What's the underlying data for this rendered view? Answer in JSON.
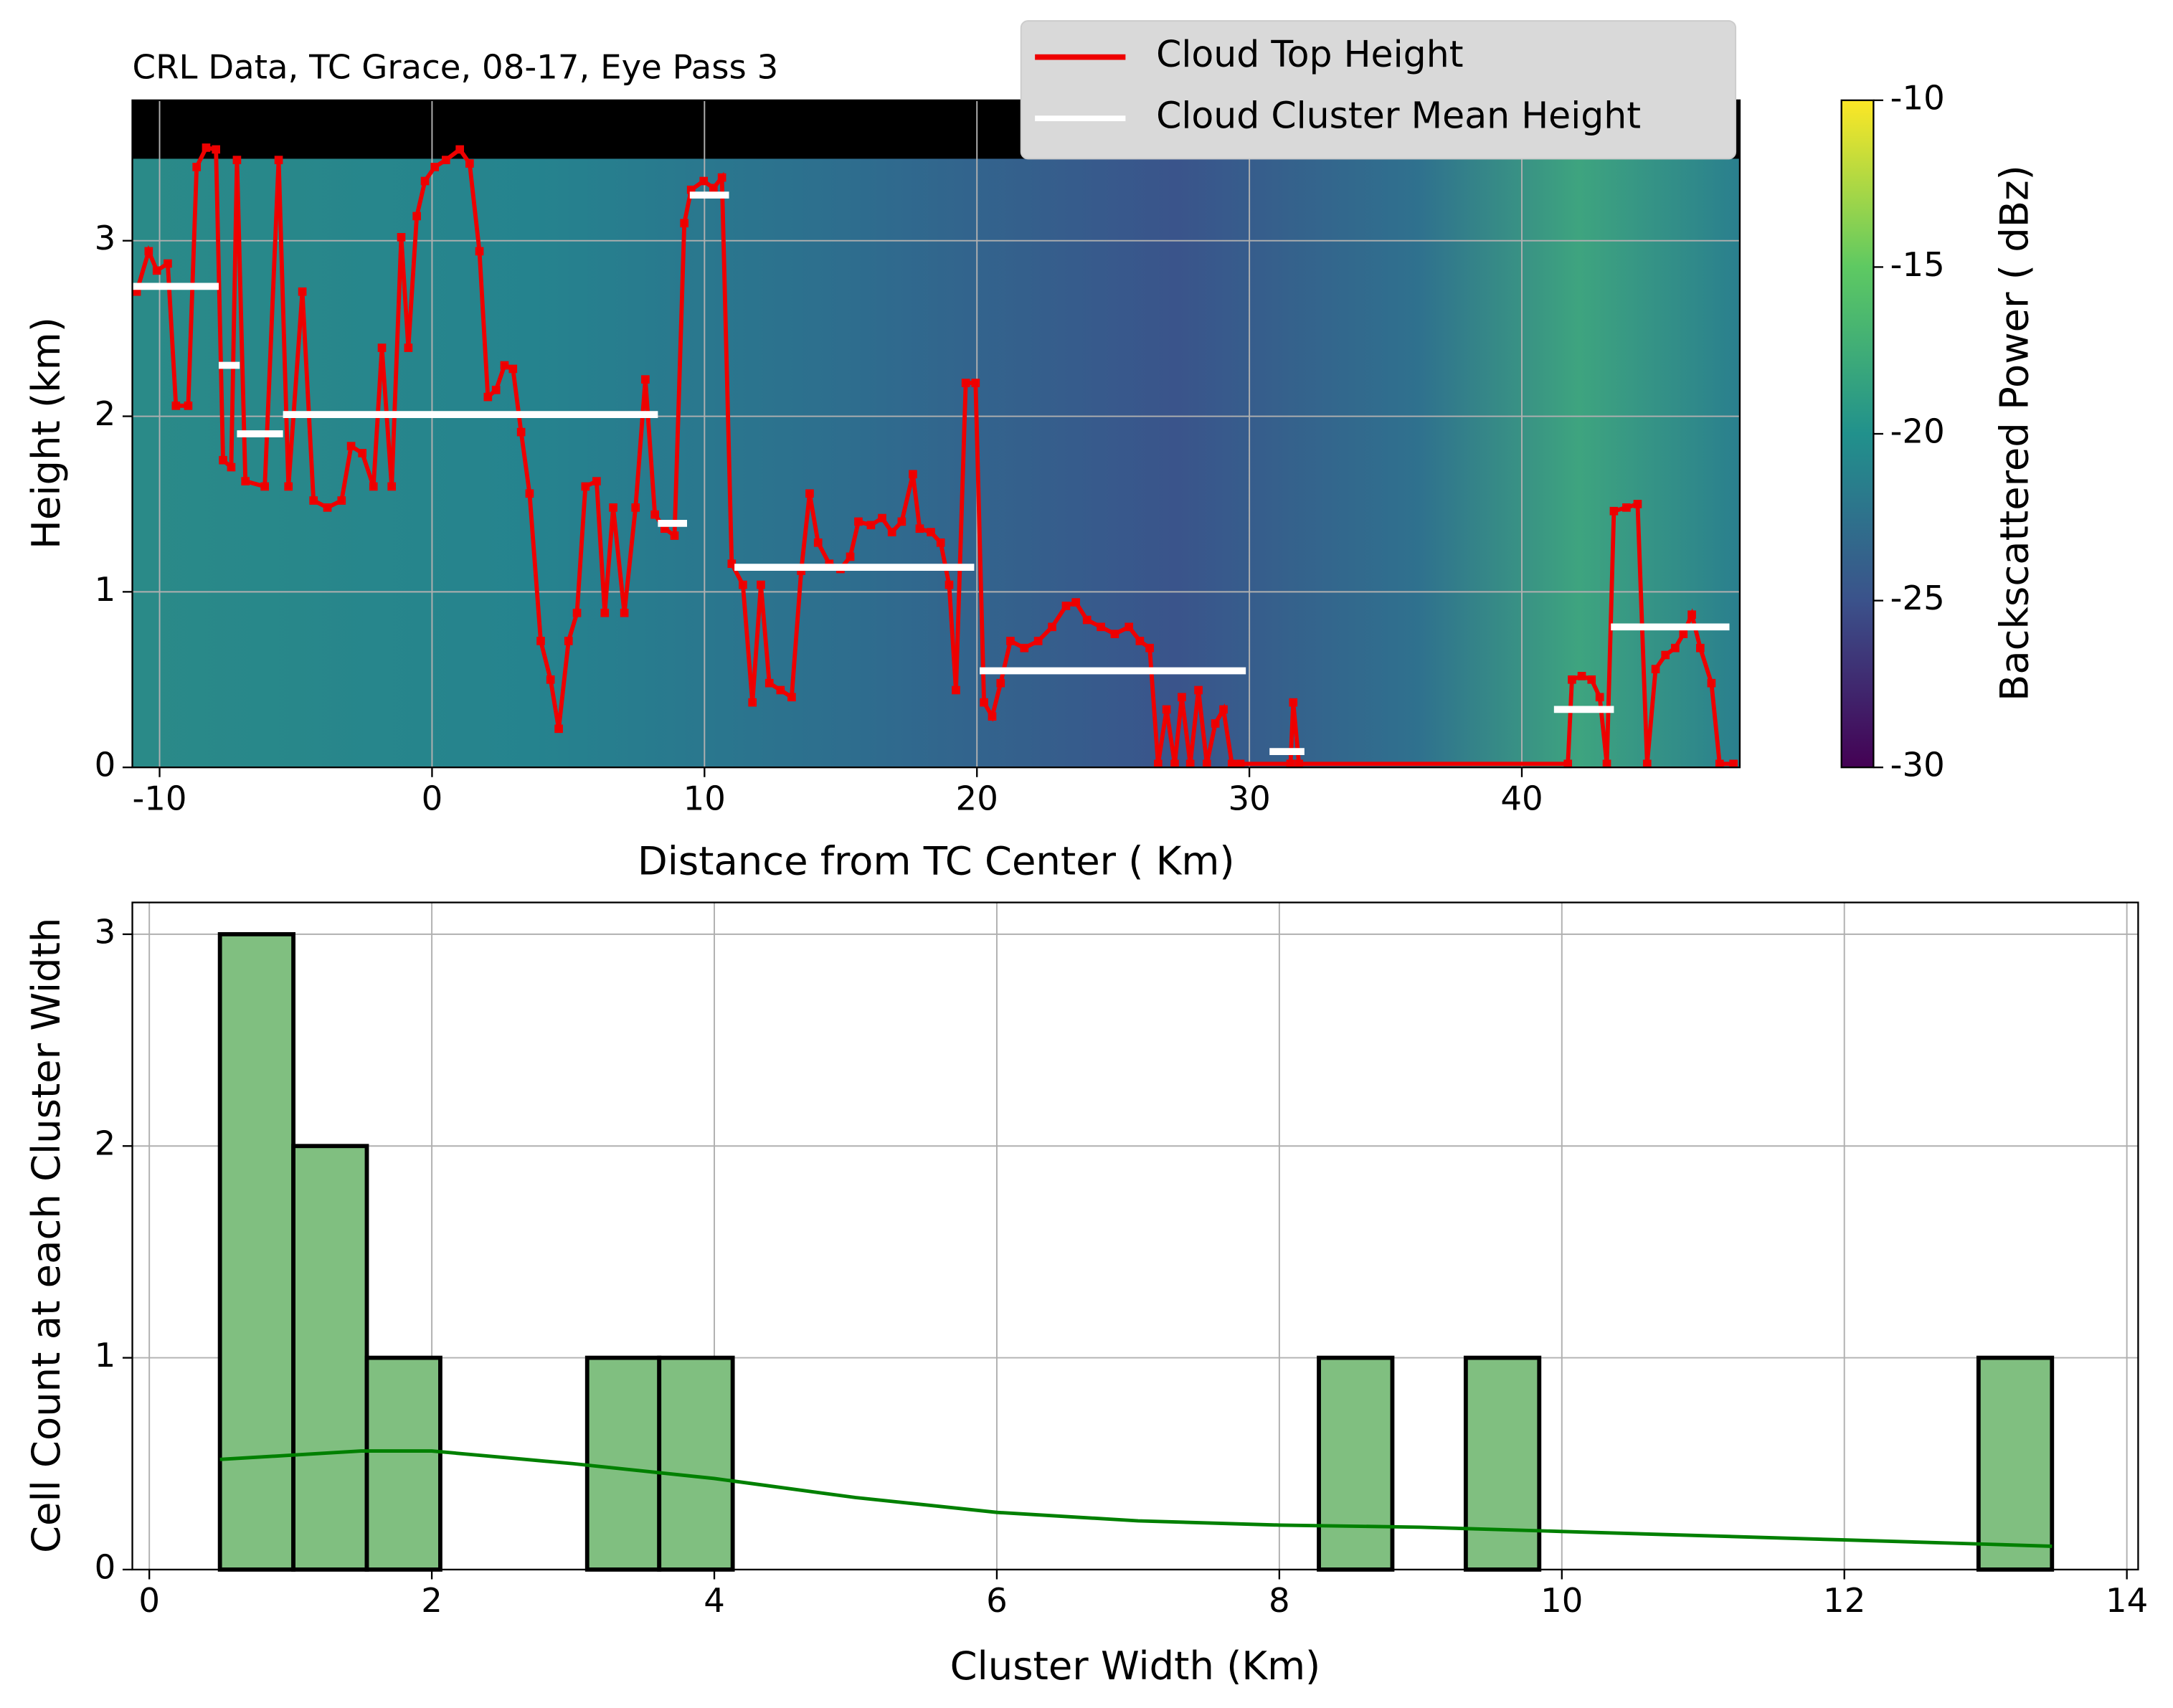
{
  "chart_data": [
    {
      "type": "line",
      "title": "CRL Data, TC Grace, 08-17, Eye Pass 3",
      "xlabel": "Distance from TC Center ( Km)",
      "ylabel": "Height (km)",
      "colorbar_label": "Backscattered Power ( dBz)",
      "colorbar_lim": [
        -30,
        -10
      ],
      "colorbar_ticks": [
        -10,
        -15,
        -20,
        -25,
        -30
      ],
      "xlim": [
        -11,
        48
      ],
      "xticks": [
        -10,
        0,
        10,
        20,
        30,
        40
      ],
      "ylim": [
        0,
        3.8
      ],
      "yticks": [
        0,
        1,
        2,
        3
      ],
      "grid": true,
      "legend": "upper center",
      "series": [
        {
          "name": "Cloud Top Height",
          "color": "#ee0000",
          "x": [
            -10.84,
            -10.4,
            -10.1,
            -9.7,
            -9.4,
            -8.95,
            -8.64,
            -8.29,
            -7.93,
            -7.67,
            -7.37,
            -7.16,
            -6.85,
            -6.14,
            -5.63,
            -5.27,
            -4.76,
            -4.35,
            -3.84,
            -3.32,
            -2.97,
            -2.56,
            -2.15,
            -1.84,
            -1.48,
            -1.13,
            -0.87,
            -0.56,
            -0.26,
            0.1,
            0.51,
            1.02,
            1.38,
            1.74,
            2.05,
            2.35,
            2.66,
            2.97,
            3.27,
            3.58,
            3.99,
            4.35,
            4.65,
            5.01,
            5.32,
            5.63,
            6.04,
            6.34,
            6.65,
            7.06,
            7.47,
            7.83,
            8.18,
            8.54,
            8.9,
            9.26,
            9.51,
            9.97,
            10.33,
            10.64,
            11.0,
            11.41,
            11.76,
            12.07,
            12.38,
            12.79,
            13.2,
            13.55,
            13.86,
            14.17,
            14.58,
            14.99,
            15.35,
            15.65,
            16.11,
            16.52,
            16.88,
            17.24,
            17.65,
            17.9,
            18.31,
            18.67,
            18.98,
            19.23,
            19.59,
            19.95,
            20.26,
            20.56,
            20.87,
            21.23,
            21.74,
            22.25,
            22.76,
            23.27,
            23.63,
            24.04,
            24.55,
            25.06,
            25.58,
            25.98,
            26.34,
            26.65,
            26.96,
            27.26,
            27.52,
            27.83,
            28.13,
            28.44,
            28.75,
            29.05,
            29.36,
            29.67,
            31.51,
            31.61,
            31.82,
            41.69,
            41.84,
            42.2,
            42.56,
            42.86,
            43.12,
            43.38,
            43.84,
            44.25,
            44.6,
            44.91,
            45.27,
            45.63,
            45.93,
            46.24,
            46.55,
            46.96,
            47.26,
            47.77
          ],
          "values": [
            2.71,
            2.94,
            2.83,
            2.87,
            2.06,
            2.06,
            3.42,
            3.53,
            3.52,
            1.75,
            1.71,
            3.46,
            1.63,
            1.6,
            3.46,
            1.6,
            2.71,
            1.52,
            1.48,
            1.52,
            1.83,
            1.79,
            1.6,
            2.39,
            1.6,
            3.02,
            2.39,
            3.14,
            3.34,
            3.42,
            3.46,
            3.52,
            3.44,
            2.94,
            2.11,
            2.15,
            2.29,
            2.27,
            1.91,
            1.56,
            0.72,
            0.5,
            0.22,
            0.72,
            0.88,
            1.6,
            1.63,
            0.88,
            1.48,
            0.88,
            1.48,
            2.21,
            1.44,
            1.36,
            1.32,
            3.1,
            3.29,
            3.34,
            3.3,
            3.36,
            1.16,
            1.04,
            0.37,
            1.04,
            0.48,
            0.44,
            0.4,
            1.12,
            1.56,
            1.28,
            1.16,
            1.13,
            1.2,
            1.4,
            1.38,
            1.42,
            1.34,
            1.4,
            1.67,
            1.36,
            1.34,
            1.28,
            1.04,
            0.44,
            2.19,
            2.19,
            0.37,
            0.29,
            0.48,
            0.72,
            0.68,
            0.72,
            0.8,
            0.92,
            0.94,
            0.84,
            0.8,
            0.76,
            0.8,
            0.72,
            0.68,
            0.02,
            0.33,
            0.02,
            0.4,
            0.02,
            0.44,
            0.02,
            0.25,
            0.33,
            0.02,
            0.02,
            0.02,
            0.37,
            0.02,
            0.02,
            0.5,
            0.52,
            0.5,
            0.4,
            0.02,
            1.46,
            1.48,
            1.5,
            0.02,
            0.56,
            0.64,
            0.68,
            0.76,
            0.87,
            0.68,
            0.48,
            0.02,
            0.02
          ]
        },
        {
          "name": "Cloud Cluster Mean Height",
          "color": "#ffffff",
          "x_start": [
            -11,
            -7.83,
            -7.16,
            -5.47,
            8.29,
            9.46,
            11.1,
            20.1,
            30.74,
            41.18,
            43.27
          ],
          "x_end": [
            -7.83,
            -7.06,
            -5.47,
            8.29,
            9.36,
            10.9,
            19.9,
            29.87,
            32.02,
            43.38,
            47.62
          ],
          "values": [
            2.74,
            2.29,
            1.9,
            2.01,
            1.39,
            3.26,
            1.14,
            0.55,
            0.09,
            0.33,
            0.8
          ]
        }
      ]
    },
    {
      "type": "histogram",
      "xlabel": "Cluster Width (Km)",
      "ylabel": "Cell Count at each Cluster Width",
      "xlim": [
        -0.12,
        14.08
      ],
      "xticks": [
        0,
        2,
        4,
        6,
        8,
        10,
        12,
        14
      ],
      "ylim": [
        0,
        3.15
      ],
      "yticks": [
        0,
        1,
        2,
        3
      ],
      "grid": true,
      "color": "#80bf80",
      "edgecolor": "#000000",
      "bins": [
        0.5,
        1.02,
        1.54,
        2.06,
        2.58,
        3.1,
        3.61,
        4.13,
        4.65,
        5.17,
        5.69,
        6.21,
        6.73,
        7.25,
        7.76,
        8.28,
        8.8,
        9.32,
        9.84,
        10.36,
        10.88,
        11.4,
        11.91,
        12.43,
        12.95,
        13.47
      ],
      "counts": [
        3,
        2,
        1,
        0,
        0,
        1,
        1,
        0,
        0,
        0,
        0,
        0,
        0,
        0,
        0,
        1,
        0,
        1,
        0,
        0,
        0,
        0,
        0,
        0,
        1
      ],
      "kde": {
        "color": "#008000",
        "x": [
          0.5,
          1.5,
          2,
          3,
          4,
          5,
          6,
          7,
          8,
          9,
          10,
          11,
          12,
          13,
          13.47
        ],
        "values": [
          0.52,
          0.56,
          0.56,
          0.5,
          0.43,
          0.34,
          0.27,
          0.23,
          0.21,
          0.2,
          0.18,
          0.16,
          0.14,
          0.12,
          0.11
        ]
      }
    }
  ]
}
